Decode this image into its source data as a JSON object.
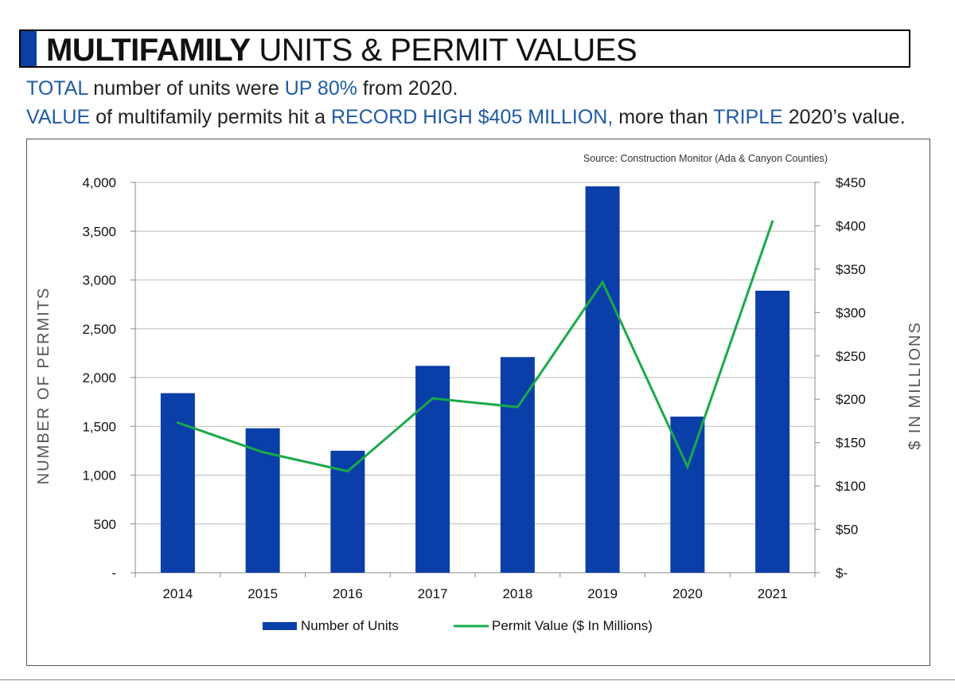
{
  "header": {
    "title_bold": "MULTIFAMILY",
    "title_rest": " UNITS & PERMIT VALUES"
  },
  "subtitle": {
    "line1": [
      {
        "text": "TOTAL",
        "hl": true
      },
      {
        "text": " number of units were ",
        "hl": false
      },
      {
        "text": "UP 80%",
        "hl": true
      },
      {
        "text": " from 2020.",
        "hl": false
      }
    ],
    "line2": [
      {
        "text": "VALUE",
        "hl": true
      },
      {
        "text": " of multifamily permits hit a ",
        "hl": false
      },
      {
        "text": "RECORD HIGH $405 MILLION,",
        "hl": true
      },
      {
        "text": " more than ",
        "hl": false
      },
      {
        "text": "TRIPLE",
        "hl": true
      },
      {
        "text": " 2020’s value.",
        "hl": false
      }
    ]
  },
  "colors": {
    "bar": "#0a3ea8",
    "line": "#1aa94a",
    "highlight": "#1f5ba8",
    "axis": "#888888"
  },
  "chart_data": {
    "type": "bar",
    "source": "Source: Construction Monitor  (Ada & Canyon Counties)",
    "categories": [
      "2014",
      "2015",
      "2016",
      "2017",
      "2018",
      "2019",
      "2020",
      "2021"
    ],
    "series": [
      {
        "name": "Number of Units",
        "type": "bar",
        "axis": "left",
        "values": [
          1840,
          1480,
          1250,
          2120,
          2210,
          3960,
          1600,
          2890
        ]
      },
      {
        "name": "Permit Value ($ In Millions)",
        "type": "line",
        "axis": "right",
        "values": [
          173,
          139,
          117,
          201,
          191,
          335,
          122,
          405
        ]
      }
    ],
    "y_left": {
      "label": "NUMBER OF PERMITS",
      "range": [
        0,
        4000
      ],
      "ticks": [
        0,
        500,
        1000,
        1500,
        2000,
        2500,
        3000,
        3500,
        4000
      ],
      "tick_labels": [
        "-",
        "500",
        "1,000",
        "1,500",
        "2,000",
        "2,500",
        "3,000",
        "3,500",
        "4,000"
      ]
    },
    "y_right": {
      "label": "$ IN MILLIONS",
      "range": [
        0,
        450
      ],
      "ticks": [
        0,
        50,
        100,
        150,
        200,
        250,
        300,
        350,
        400,
        450
      ],
      "tick_labels": [
        "$-",
        "$50",
        "$100",
        "$150",
        "$200",
        "$250",
        "$300",
        "$350",
        "$400",
        "$450"
      ]
    },
    "grid": "horizontal",
    "legend_position": "bottom-center"
  }
}
